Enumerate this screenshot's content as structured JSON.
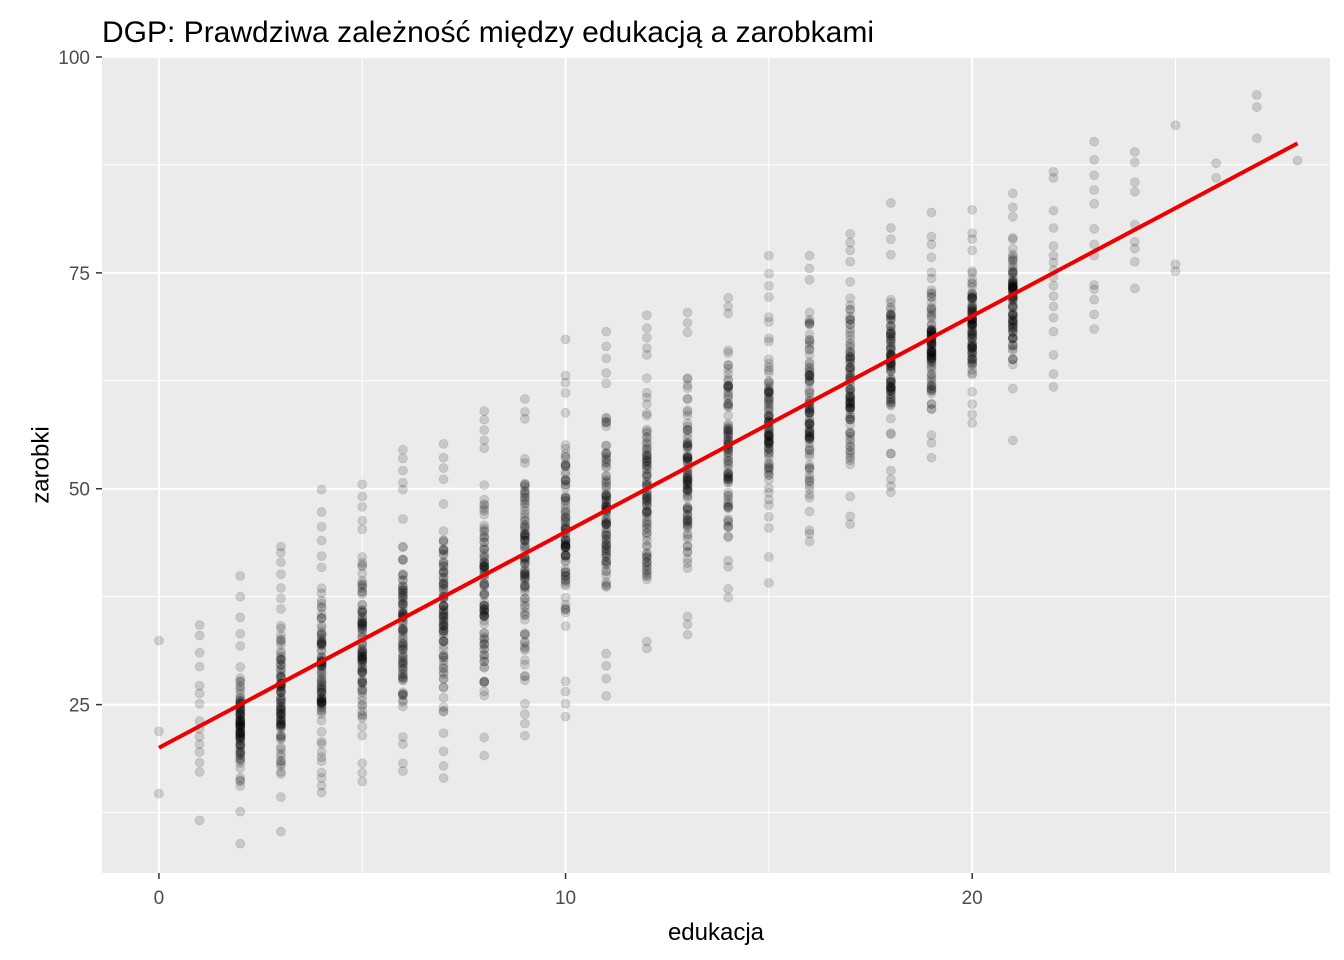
{
  "chart_data": {
    "type": "scatter",
    "title": "DGP: Prawdziwa zależność między edukacją a zarobkami",
    "xlabel": "edukacja",
    "ylabel": "zarobki",
    "xlim": [
      -1.4,
      28.8
    ],
    "ylim": [
      5.5,
      100
    ],
    "x_ticks": [
      0,
      10,
      20
    ],
    "y_ticks": [
      25,
      50,
      75,
      100
    ],
    "grid": true,
    "background": "#ebebeb",
    "point_color": "#000000",
    "point_alpha": 0.15,
    "columns": [
      {
        "x": 0,
        "points": [
          14.7,
          21.9,
          32.4
        ]
      },
      {
        "x": 1,
        "points": [
          11.6,
          17.2,
          18.3,
          19.5,
          20.4,
          21.3,
          22.2,
          23.1,
          25.1,
          26.3,
          27.2,
          29.4,
          31.0,
          33.0,
          34.2
        ]
      },
      {
        "x": 2,
        "min": 12.6,
        "max": 31.8,
        "outliers": [
          8.9,
          33.2,
          35.1,
          37.5,
          39.9
        ]
      },
      {
        "x": 3,
        "min": 14.3,
        "max": 37.3,
        "outliers": [
          10.3,
          38.5,
          40.1,
          41.5,
          42.6,
          43.3
        ]
      },
      {
        "x": 4,
        "min": 16.5,
        "max": 40.9,
        "outliers": [
          14.8,
          15.6,
          42.2,
          44.0,
          45.6,
          47.3,
          49.9
        ]
      },
      {
        "x": 5,
        "min": 18.2,
        "max": 45.3,
        "outliers": [
          16.1,
          17.1,
          46.3,
          47.9,
          49.1,
          50.5
        ]
      },
      {
        "x": 6,
        "min": 18.2,
        "max": 49.9,
        "outliers": [
          17.3,
          50.7,
          52.1,
          53.5,
          54.5
        ]
      },
      {
        "x": 7,
        "min": 19.6,
        "max": 51.1,
        "outliers": [
          16.5,
          17.9,
          52.4,
          53.6,
          55.2
        ]
      },
      {
        "x": 8,
        "min": 21.2,
        "max": 54.7,
        "outliers": [
          19.1,
          55.6,
          56.8,
          58.0,
          59.0
        ]
      },
      {
        "x": 9,
        "min": 25.1,
        "max": 58.1,
        "outliers": [
          21.4,
          22.8,
          23.9,
          58.9,
          60.4
        ]
      },
      {
        "x": 10,
        "min": 27.7,
        "max": 61.1,
        "outliers": [
          23.6,
          25.1,
          26.5,
          62.3,
          63.1,
          67.3
        ]
      },
      {
        "x": 11,
        "min": 30.9,
        "max": 62.2,
        "outliers": [
          26.0,
          28.0,
          29.5,
          63.4,
          65.1,
          66.5,
          68.2
        ]
      },
      {
        "x": 12,
        "min": 32.3,
        "max": 65.5,
        "outliers": [
          31.5,
          66.3,
          67.5,
          68.6,
          70.1
        ]
      },
      {
        "x": 13,
        "min": 35.2,
        "max": 68.1,
        "outliers": [
          33.1,
          34.3,
          69.2,
          70.4
        ]
      },
      {
        "x": 14,
        "min": 38.4,
        "max": 70.3,
        "outliers": [
          37.4,
          71.1,
          72.1
        ]
      },
      {
        "x": 15,
        "min": 42.1,
        "max": 72.2,
        "outliers": [
          39.1,
          73.5,
          74.9,
          77.0
        ]
      },
      {
        "x": 16,
        "min": 45.2,
        "max": 74.2,
        "outliers": [
          43.9,
          44.8,
          75.5,
          77.0
        ]
      },
      {
        "x": 17,
        "min": 49.1,
        "max": 76.3,
        "outliers": [
          45.9,
          46.8,
          77.6,
          78.5,
          79.5
        ]
      },
      {
        "x": 18,
        "min": 52.1,
        "max": 77.1,
        "outliers": [
          49.6,
          50.3,
          51.1,
          78.9,
          80.2,
          83.1
        ]
      },
      {
        "x": 19,
        "min": 56.2,
        "max": 76.8,
        "outliers": [
          53.6,
          55.3,
          78.3,
          79.2,
          82.0
        ]
      },
      {
        "x": 20,
        "min": 59.8,
        "max": 77.6,
        "outliers": [
          57.6,
          58.6,
          78.9,
          79.6,
          82.3
        ]
      },
      {
        "x": 21,
        "min": 61.6,
        "max": 81.5,
        "outliers": [
          55.6,
          82.6,
          84.2
        ]
      },
      {
        "x": 22,
        "points": [
          61.8,
          63.3,
          65.5,
          68.2,
          69.8,
          71.1,
          72.3,
          73.5,
          74.5,
          75.3,
          76.2,
          77.0,
          78.1,
          80.2,
          82.2,
          86.0,
          86.7
        ]
      },
      {
        "x": 23,
        "points": [
          68.5,
          70.2,
          71.9,
          73.1,
          73.6,
          77.0,
          78.3,
          80.1,
          83.0,
          84.6,
          86.3,
          88.1,
          90.2
        ]
      },
      {
        "x": 24,
        "points": [
          73.2,
          76.3,
          77.8,
          78.6,
          80.6,
          84.4,
          85.5,
          87.8,
          89.0
        ]
      },
      {
        "x": 25,
        "points": [
          75.2,
          76.0,
          92.1
        ]
      },
      {
        "x": 26,
        "points": [
          86.0,
          87.7
        ]
      },
      {
        "x": 27,
        "points": [
          90.6,
          94.2,
          95.6
        ]
      },
      {
        "x": 28,
        "points": [
          88.0
        ]
      }
    ],
    "true_line": {
      "intercept": 20,
      "slope": 2.5,
      "x_range": [
        0,
        28
      ],
      "color": "#ee0000"
    }
  }
}
